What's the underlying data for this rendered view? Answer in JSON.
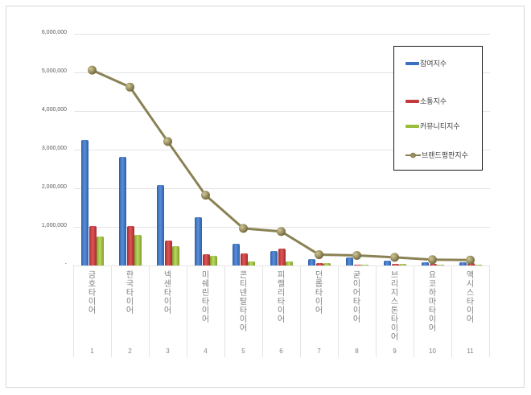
{
  "chart_data": {
    "type": "bar",
    "title": "",
    "xlabel": "",
    "ylabel": "",
    "ylim": [
      0,
      6000000
    ],
    "y_ticks": [
      "-",
      "1,000,000",
      "2,000,000",
      "3,000,000",
      "4,000,000",
      "5,000,000",
      "6,000,000"
    ],
    "grid": true,
    "legend_position": "right-inside",
    "categories": [
      "금호타이어",
      "한국타이어",
      "넥센타이어",
      "미쉐린타이어",
      "콘티넨탈타이어",
      "피렐리타이어",
      "던롭타이어",
      "굳이어타이어",
      "브리지스톤타이어",
      "요코하마타이어",
      "액시스타이어"
    ],
    "category_numbers": [
      "1",
      "2",
      "3",
      "4",
      "5",
      "6",
      "7",
      "8",
      "9",
      "10",
      "11"
    ],
    "series": [
      {
        "name": "참여지수",
        "type": "bar",
        "color": "#3b6fc2",
        "values": [
          3250000,
          2810000,
          2080000,
          1250000,
          560000,
          370000,
          170000,
          200000,
          120000,
          90000,
          90000
        ]
      },
      {
        "name": "소통지수",
        "type": "bar",
        "color": "#c23a3c",
        "values": [
          1030000,
          1030000,
          650000,
          290000,
          310000,
          430000,
          70000,
          30000,
          50000,
          50000,
          70000
        ]
      },
      {
        "name": "커뮤니티지수",
        "type": "bar",
        "color": "#9cbc3c",
        "values": [
          760000,
          790000,
          490000,
          260000,
          100000,
          100000,
          60000,
          30000,
          50000,
          20000,
          10000
        ]
      },
      {
        "name": "브랜드평판지수",
        "type": "line",
        "color": "#8a8154",
        "values": [
          5060000,
          4620000,
          3210000,
          1820000,
          960000,
          880000,
          280000,
          260000,
          210000,
          150000,
          140000
        ]
      }
    ]
  },
  "legend": {
    "items": [
      {
        "label": "참여지수",
        "color": "#3b6fc2",
        "kind": "bar"
      },
      {
        "label": "소통지수",
        "color": "#c23a3c",
        "kind": "bar"
      },
      {
        "label": "커뮤니티지수",
        "color": "#9cbc3c",
        "kind": "bar"
      },
      {
        "label": "브랜드평판지수",
        "color": "#8a8154",
        "kind": "line"
      }
    ]
  }
}
